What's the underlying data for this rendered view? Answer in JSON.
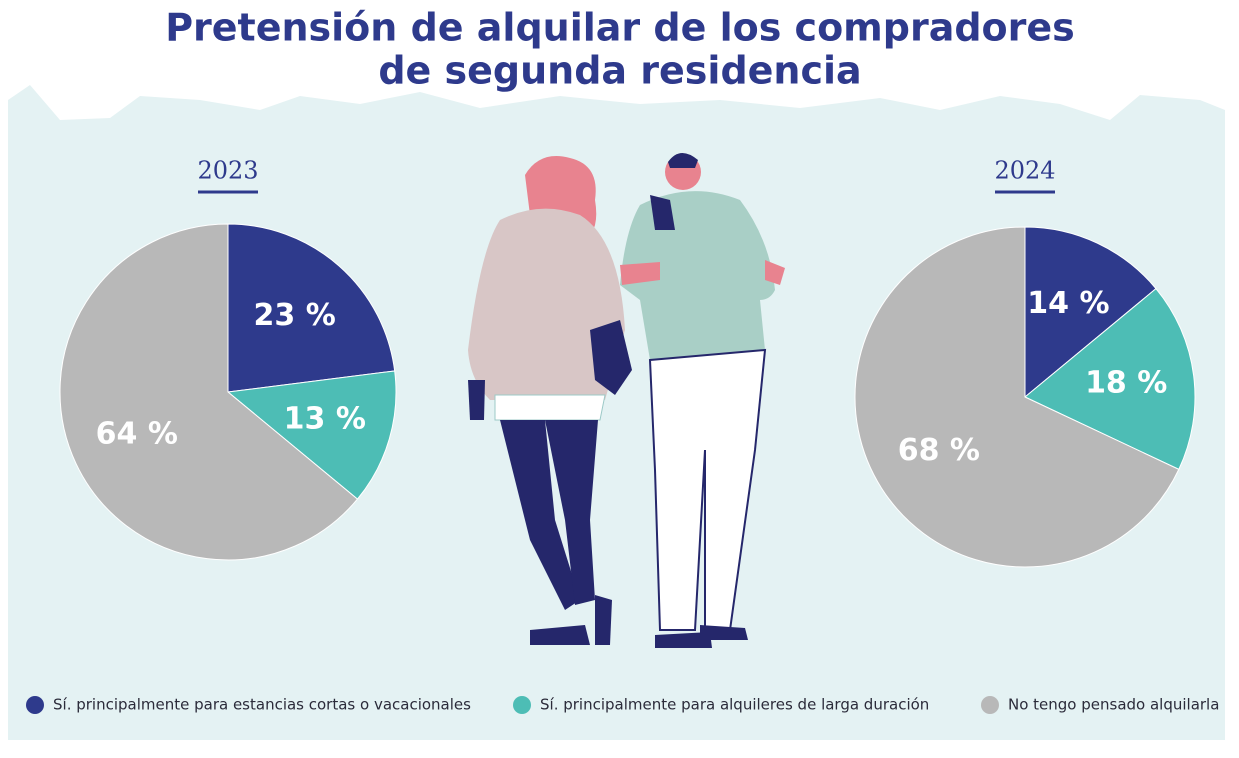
{
  "title_lines": [
    "Pretensión de alquilar de los compradores",
    "de segunda residencia"
  ],
  "chart_data": [
    {
      "type": "pie",
      "title": "2023",
      "categories": [
        "Sí. principalmente para estancias cortas o vacacionales",
        "Sí. principalmente para alquileres de larga duración",
        "No tengo pensado alquilarla"
      ],
      "values": [
        23,
        13,
        64
      ],
      "value_labels": [
        "23 %",
        "13 %",
        "64 %"
      ],
      "colors": [
        "#2e3a8c",
        "#4dbdb5",
        "#b8b8b8"
      ]
    },
    {
      "type": "pie",
      "title": "2024",
      "categories": [
        "Sí. principalmente para estancias cortas o vacacionales",
        "Sí. principalmente para alquileres de larga duración",
        "No tengo pensado alquilarla"
      ],
      "values": [
        14,
        18,
        68
      ],
      "value_labels": [
        "14 %",
        "18 %",
        "68 %"
      ],
      "colors": [
        "#2e3a8c",
        "#4dbdb5",
        "#b8b8b8"
      ]
    }
  ]
}
